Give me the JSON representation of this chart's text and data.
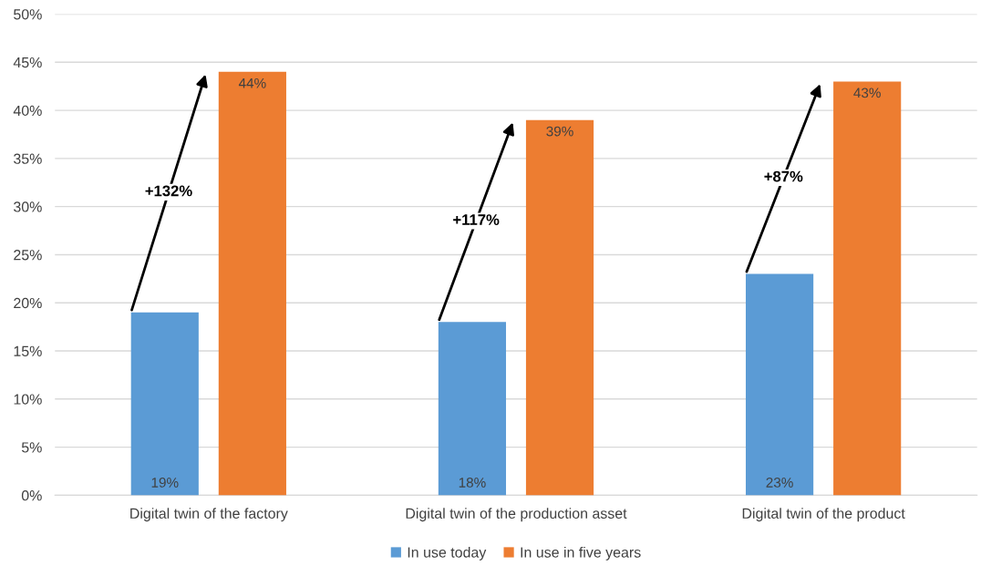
{
  "chart_data": {
    "type": "bar",
    "categories": [
      "Digital twin of the factory",
      "Digital twin of the production asset",
      "Digital twin of the product"
    ],
    "series": [
      {
        "name": "In use today",
        "color": "#5b9bd5",
        "values": [
          19,
          18,
          23
        ],
        "value_labels": [
          "19%",
          "18%",
          "23%"
        ]
      },
      {
        "name": "In use in five years",
        "color": "#ed7d31",
        "values": [
          44,
          39,
          43
        ],
        "value_labels": [
          "44%",
          "39%",
          "43%"
        ]
      }
    ],
    "ylim": [
      0,
      50
    ],
    "yticks": [
      {
        "value": 0,
        "label": "0%"
      },
      {
        "value": 5,
        "label": "5%"
      },
      {
        "value": 10,
        "label": "10%"
      },
      {
        "value": 15,
        "label": "15%"
      },
      {
        "value": 20,
        "label": "20%"
      },
      {
        "value": 25,
        "label": "25%"
      },
      {
        "value": 30,
        "label": "30%"
      },
      {
        "value": 35,
        "label": "35%"
      },
      {
        "value": 40,
        "label": "40%"
      },
      {
        "value": 45,
        "label": "45%"
      },
      {
        "value": 50,
        "label": "50%"
      }
    ],
    "annotations": [
      "+132%",
      "+117%",
      "+87%"
    ],
    "grid": "y",
    "legend": "bottom"
  }
}
